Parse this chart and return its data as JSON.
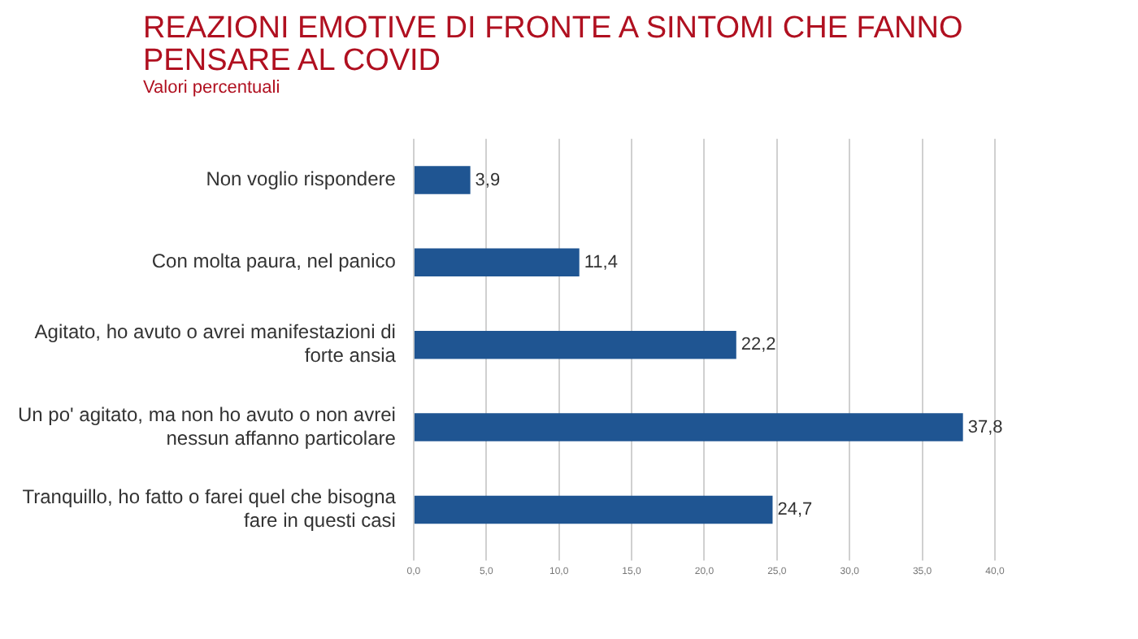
{
  "chart_data": {
    "type": "bar",
    "orientation": "horizontal",
    "title": "REAZIONI EMOTIVE DI FRONTE A SINTOMI CHE FANNO PENSARE AL COVID",
    "subtitle": "Valori percentuali",
    "categories": [
      "Non voglio rispondere",
      "Con molta paura, nel panico",
      "Agitato, ho avuto o avrei manifestazioni di forte ansia",
      "Un po' agitato, ma non ho avuto o non avrei nessun affanno particolare",
      "Tranquillo, ho fatto o farei quel che bisogna fare in questi casi"
    ],
    "values": [
      3.9,
      11.4,
      22.2,
      37.8,
      24.7
    ],
    "value_labels": [
      "3,9",
      "11,4",
      "22,2",
      "37,8",
      "24,7"
    ],
    "color": "#1f5592",
    "xlim": [
      0,
      40
    ],
    "xticks": [
      {
        "value": 0,
        "label": "0,0"
      },
      {
        "value": 5,
        "label": "5,0"
      },
      {
        "value": 10,
        "label": "10,0"
      },
      {
        "value": 15,
        "label": "15,0"
      },
      {
        "value": 20,
        "label": "20,0"
      },
      {
        "value": 25,
        "label": "25,0"
      },
      {
        "value": 30,
        "label": "30,0"
      },
      {
        "value": 35,
        "label": "35,0"
      },
      {
        "value": 40,
        "label": "40,0"
      }
    ],
    "grid": "x"
  }
}
